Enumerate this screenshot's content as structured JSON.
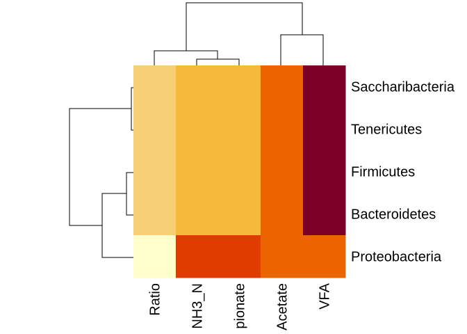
{
  "chart_data": {
    "type": "heatmap",
    "title": "",
    "xlabel": "",
    "ylabel": "",
    "columns": [
      "Ratio",
      "NH3_N",
      "pionate",
      "Acetate",
      "VFA"
    ],
    "rows": [
      "Saccharibacteria",
      "Tenericutes",
      "Firmicutes",
      "Bacteroidetes",
      "Proteobacteria"
    ],
    "values": [
      [
        3,
        2,
        2,
        1,
        0
      ],
      [
        3,
        2,
        2,
        1,
        0
      ],
      [
        3,
        2,
        2,
        1,
        0
      ],
      [
        3,
        2,
        2,
        1,
        0
      ],
      [
        4,
        1.5,
        1.5,
        1,
        1
      ]
    ],
    "color_scale": {
      "0": "#7a0026",
      "1": "#ec6400",
      "1.5": "#e03c00",
      "2": "#f5b93c",
      "3": "#f6cf76",
      "4": "#ffffcc"
    },
    "grid": false,
    "legend": "none",
    "col_dendrogram": "top",
    "row_dendrogram": "left"
  }
}
